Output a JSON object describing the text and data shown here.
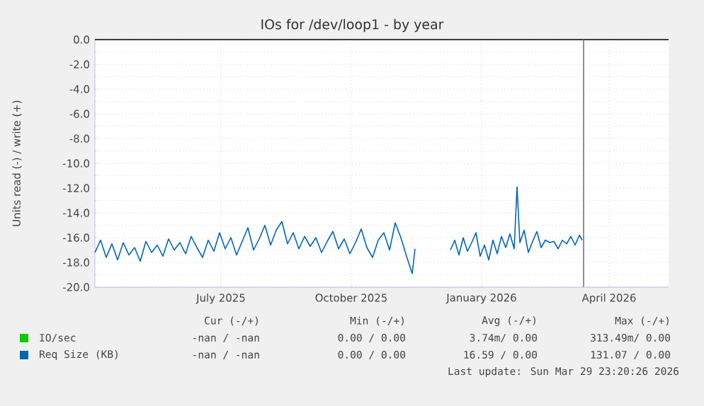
{
  "chart_data": {
    "type": "line",
    "title": "IOs for /dev/loop1 - by year",
    "ylabel": "Units read (-) / write (+)",
    "xlim": [
      "2025-04-03",
      "2026-05-13"
    ],
    "xticks": [
      {
        "value": "2025-07-01",
        "label": "July 2025"
      },
      {
        "value": "2025-10-01",
        "label": "October 2025"
      },
      {
        "value": "2026-01-01",
        "label": "January 2026"
      },
      {
        "value": "2026-04-01",
        "label": "April 2026"
      }
    ],
    "ylim": [
      -20,
      0
    ],
    "yticks": [
      {
        "value": -20,
        "label": "-20.0"
      },
      {
        "value": -18,
        "label": "-18.0"
      },
      {
        "value": -16,
        "label": "-16.0"
      },
      {
        "value": -14,
        "label": "-14.0"
      },
      {
        "value": -12,
        "label": "-12.0"
      },
      {
        "value": -10,
        "label": "-10.0"
      },
      {
        "value": -8,
        "label": "-8.0"
      },
      {
        "value": -6,
        "label": "-6.0"
      },
      {
        "value": -4,
        "label": "-4.0"
      },
      {
        "value": -2,
        "label": "-2.0"
      },
      {
        "value": 0,
        "label": "0.0"
      }
    ],
    "grid": true,
    "legend": "bottom",
    "marker": "none",
    "line_style": "solid",
    "ref_lines": [
      {
        "axis": "y",
        "value": 0,
        "color": "#000000"
      },
      {
        "axis": "x",
        "value": "2026-03-14",
        "color": "#7f6f6f"
      }
    ],
    "series": [
      {
        "name": "IO/sec",
        "color": "#00cc00"
      },
      {
        "name": "Req Size (KB)",
        "color": "#0066b3",
        "x": [
          "2025-04-03",
          "2025-04-07",
          "2025-04-11",
          "2025-04-15",
          "2025-04-19",
          "2025-04-23",
          "2025-04-27",
          "2025-05-01",
          "2025-05-05",
          "2025-05-09",
          "2025-05-13",
          "2025-05-17",
          "2025-05-21",
          "2025-05-25",
          "2025-05-29",
          "2025-06-02",
          "2025-06-06",
          "2025-06-10",
          "2025-06-14",
          "2025-06-18",
          "2025-06-22",
          "2025-06-26",
          "2025-06-30",
          "2025-07-04",
          "2025-07-08",
          "2025-07-12",
          "2025-07-16",
          "2025-07-20",
          "2025-07-24",
          "2025-07-28",
          "2025-08-01",
          "2025-08-05",
          "2025-08-09",
          "2025-08-13",
          "2025-08-17",
          "2025-08-21",
          "2025-08-25",
          "2025-08-29",
          "2025-09-02",
          "2025-09-06",
          "2025-09-10",
          "2025-09-14",
          "2025-09-18",
          "2025-09-22",
          "2025-09-26",
          "2025-09-30",
          "2025-10-04",
          "2025-10-08",
          "2025-10-12",
          "2025-10-16",
          "2025-10-20",
          "2025-10-24",
          "2025-10-28",
          "2025-11-01",
          "2025-11-05",
          "2025-11-09",
          "2025-11-13",
          "2025-11-15",
          "2025-11-20",
          "2025-12-10",
          "2025-12-13",
          "2025-12-16",
          "2025-12-19",
          "2025-12-22",
          "2025-12-25",
          "2025-12-28",
          "2025-12-31",
          "2026-01-03",
          "2026-01-06",
          "2026-01-09",
          "2026-01-12",
          "2026-01-15",
          "2026-01-18",
          "2026-01-21",
          "2026-01-24",
          "2026-01-26",
          "2026-01-28",
          "2026-01-31",
          "2026-02-03",
          "2026-02-06",
          "2026-02-09",
          "2026-02-12",
          "2026-02-15",
          "2026-02-18",
          "2026-02-21",
          "2026-02-24",
          "2026-02-27",
          "2026-03-02",
          "2026-03-05",
          "2026-03-08",
          "2026-03-11",
          "2026-03-13"
        ],
        "values": [
          -17.2,
          -16.2,
          -17.6,
          -16.5,
          -17.8,
          -16.4,
          -17.4,
          -16.8,
          -17.9,
          -16.3,
          -17.2,
          -16.6,
          -17.5,
          -16.1,
          -17.0,
          -16.4,
          -17.3,
          -15.9,
          -16.8,
          -17.6,
          -16.2,
          -17.1,
          -15.6,
          -16.9,
          -16.0,
          -17.4,
          -16.3,
          -15.2,
          -17.0,
          -16.1,
          -15.0,
          -16.6,
          -15.4,
          -14.7,
          -16.5,
          -15.6,
          -16.9,
          -15.9,
          -16.7,
          -16.0,
          -17.2,
          -16.3,
          -15.5,
          -16.9,
          -16.1,
          -17.3,
          -16.4,
          -15.3,
          -16.8,
          -17.6,
          -16.2,
          -15.6,
          -17.0,
          -14.8,
          -16.0,
          -17.5,
          -18.9,
          -16.9,
          null,
          -17.0,
          -16.2,
          -17.4,
          -16.0,
          -17.1,
          -16.4,
          -15.6,
          -17.5,
          -16.6,
          -17.8,
          -16.2,
          -17.3,
          -15.9,
          -16.8,
          -15.7,
          -16.9,
          -11.9,
          -16.4,
          -15.4,
          -17.2,
          -16.3,
          -15.5,
          -16.8,
          -16.2,
          -16.4,
          -16.3,
          -16.9,
          -16.2,
          -16.5,
          -15.9,
          -16.6,
          -15.8,
          -16.2
        ]
      }
    ],
    "annotations": [
      "Cur (-/+)",
      "Min (-/+)",
      "Avg (-/+)",
      "Max (-/+)",
      "-nan / -nan",
      "0.00 / 0.00",
      "3.74m/ 0.00",
      "313.49m/ 0.00",
      "-nan / -nan",
      "0.00 / 0.00",
      "16.59 / 0.00",
      "131.07 / 0.00",
      "Last update: Sun Mar 29 23:20:26 2026"
    ]
  }
}
